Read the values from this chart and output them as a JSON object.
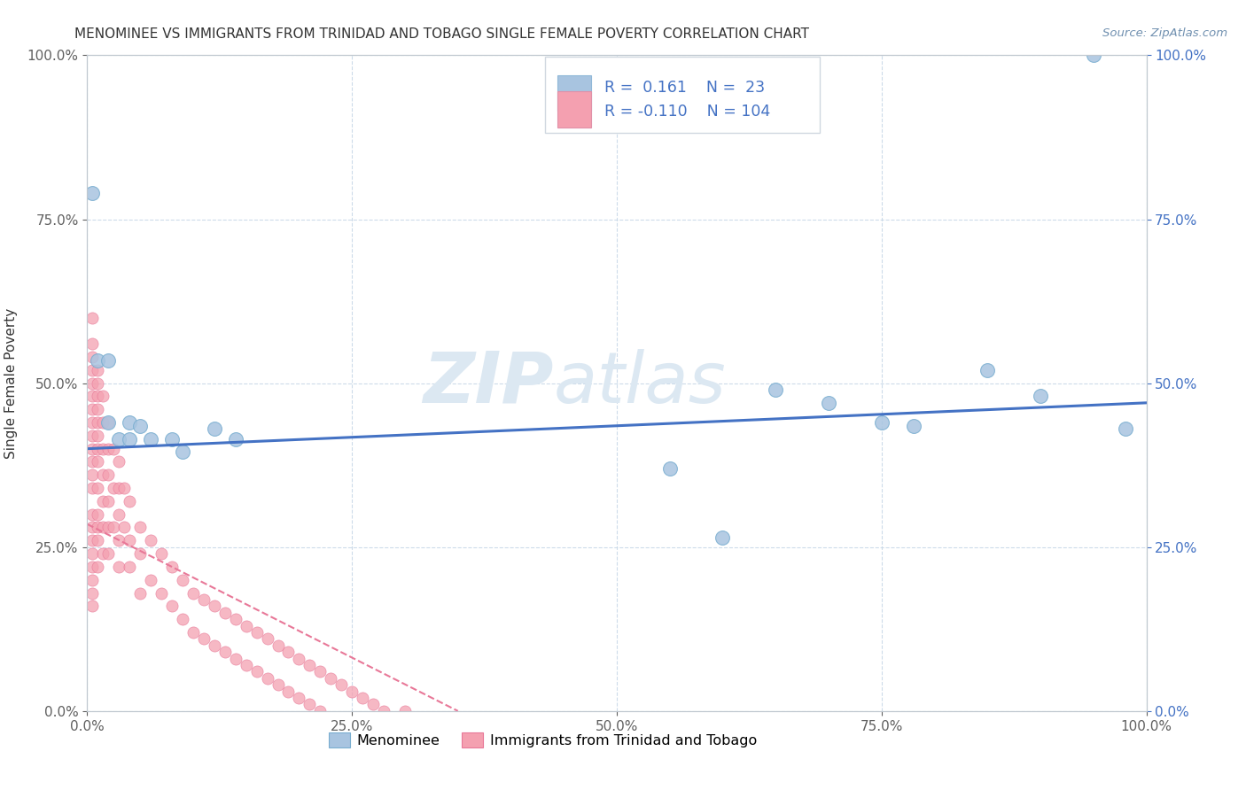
{
  "title": "MENOMINEE VS IMMIGRANTS FROM TRINIDAD AND TOBAGO SINGLE FEMALE POVERTY CORRELATION CHART",
  "source_text": "Source: ZipAtlas.com",
  "ylabel": "Single Female Poverty",
  "xlim": [
    0.0,
    1.0
  ],
  "ylim": [
    0.0,
    1.0
  ],
  "xtick_values": [
    0.0,
    0.25,
    0.5,
    0.75,
    1.0
  ],
  "ytick_values": [
    0.0,
    0.25,
    0.5,
    0.75,
    1.0
  ],
  "menominee_x": [
    0.005,
    0.01,
    0.02,
    0.02,
    0.03,
    0.04,
    0.04,
    0.05,
    0.06,
    0.08,
    0.09,
    0.12,
    0.14,
    0.55,
    0.6,
    0.65,
    0.7,
    0.75,
    0.78,
    0.85,
    0.9,
    0.95,
    0.98
  ],
  "menominee_y": [
    0.79,
    0.535,
    0.535,
    0.44,
    0.415,
    0.44,
    0.415,
    0.435,
    0.415,
    0.415,
    0.395,
    0.43,
    0.415,
    0.37,
    0.265,
    0.49,
    0.47,
    0.44,
    0.435,
    0.52,
    0.48,
    1.0,
    0.43
  ],
  "trinidad_x": [
    0.005,
    0.005,
    0.005,
    0.005,
    0.005,
    0.005,
    0.005,
    0.005,
    0.005,
    0.005,
    0.005,
    0.005,
    0.005,
    0.005,
    0.005,
    0.005,
    0.005,
    0.005,
    0.005,
    0.005,
    0.005,
    0.01,
    0.01,
    0.01,
    0.01,
    0.01,
    0.01,
    0.01,
    0.01,
    0.01,
    0.01,
    0.01,
    0.01,
    0.01,
    0.015,
    0.015,
    0.015,
    0.015,
    0.015,
    0.015,
    0.015,
    0.02,
    0.02,
    0.02,
    0.02,
    0.02,
    0.02,
    0.025,
    0.025,
    0.025,
    0.03,
    0.03,
    0.03,
    0.03,
    0.03,
    0.035,
    0.035,
    0.04,
    0.04,
    0.04,
    0.05,
    0.05,
    0.05,
    0.06,
    0.06,
    0.07,
    0.07,
    0.08,
    0.08,
    0.09,
    0.09,
    0.1,
    0.1,
    0.11,
    0.11,
    0.12,
    0.12,
    0.13,
    0.13,
    0.14,
    0.14,
    0.15,
    0.15,
    0.16,
    0.16,
    0.17,
    0.17,
    0.18,
    0.18,
    0.19,
    0.19,
    0.2,
    0.2,
    0.21,
    0.21,
    0.22,
    0.22,
    0.23,
    0.24,
    0.25,
    0.26,
    0.27,
    0.28,
    0.3
  ],
  "trinidad_y": [
    0.6,
    0.56,
    0.54,
    0.52,
    0.5,
    0.48,
    0.46,
    0.44,
    0.42,
    0.4,
    0.38,
    0.36,
    0.34,
    0.3,
    0.28,
    0.26,
    0.24,
    0.22,
    0.2,
    0.18,
    0.16,
    0.52,
    0.5,
    0.48,
    0.46,
    0.44,
    0.42,
    0.4,
    0.38,
    0.34,
    0.3,
    0.28,
    0.26,
    0.22,
    0.48,
    0.44,
    0.4,
    0.36,
    0.32,
    0.28,
    0.24,
    0.44,
    0.4,
    0.36,
    0.32,
    0.28,
    0.24,
    0.4,
    0.34,
    0.28,
    0.38,
    0.34,
    0.3,
    0.26,
    0.22,
    0.34,
    0.28,
    0.32,
    0.26,
    0.22,
    0.28,
    0.24,
    0.18,
    0.26,
    0.2,
    0.24,
    0.18,
    0.22,
    0.16,
    0.2,
    0.14,
    0.18,
    0.12,
    0.17,
    0.11,
    0.16,
    0.1,
    0.15,
    0.09,
    0.14,
    0.08,
    0.13,
    0.07,
    0.12,
    0.06,
    0.11,
    0.05,
    0.1,
    0.04,
    0.09,
    0.03,
    0.08,
    0.02,
    0.07,
    0.01,
    0.06,
    0.0,
    0.05,
    0.04,
    0.03,
    0.02,
    0.01,
    0.0,
    0.0
  ],
  "menominee_color": "#a8c4e0",
  "menominee_edge_color": "#7aaed0",
  "trinidad_color": "#f4a0b0",
  "trinidad_edge_color": "#e87898",
  "menominee_line_color": "#4472c4",
  "trinidad_line_color": "#e87898",
  "menominee_line_start_x": 0.0,
  "menominee_line_end_x": 1.0,
  "menominee_line_start_y": 0.4,
  "menominee_line_end_y": 0.47,
  "trinidad_line_start_x": 0.0,
  "trinidad_line_end_x": 0.35,
  "trinidad_line_start_y": 0.285,
  "trinidad_line_end_y": 0.0,
  "menominee_R": 0.161,
  "menominee_N": 23,
  "trinidad_R": -0.11,
  "trinidad_N": 104,
  "r_color": "#4472c4",
  "watermark_zip": "ZIP",
  "watermark_atlas": "atlas",
  "watermark_color": "#dce8f2",
  "background_color": "#ffffff",
  "title_color": "#333333",
  "title_fontsize": 11,
  "right_tick_color": "#4472c4",
  "left_tick_color": "#606060",
  "source_color": "#7090b0"
}
